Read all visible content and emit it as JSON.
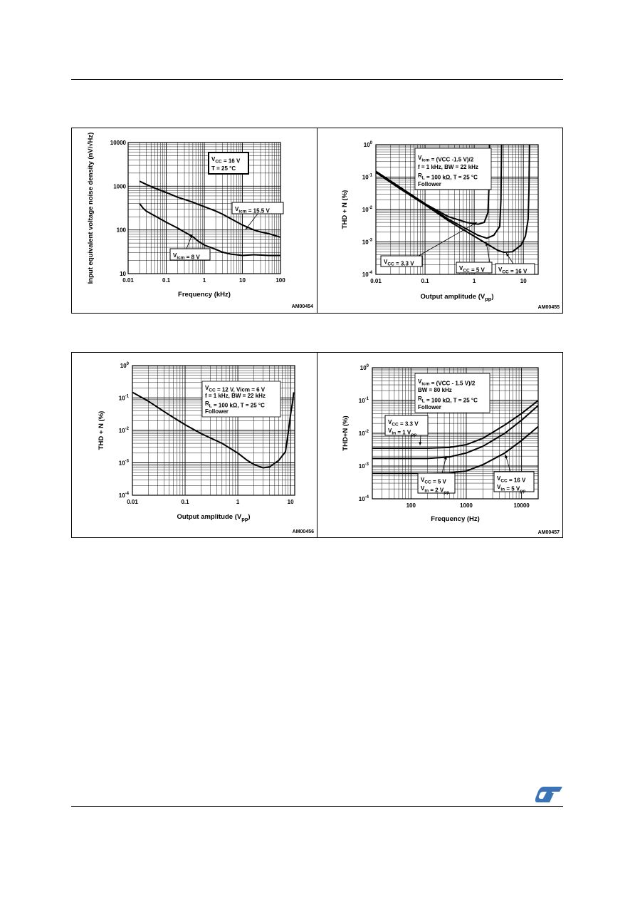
{
  "brand": {
    "logo_text": "ST",
    "color": "#3a73b8"
  },
  "chart_data": [
    {
      "type": "line",
      "code": "AM00454",
      "xlabel": "Frequency (kHz)",
      "ylabel": "Input equivalent voltage noise density (nV/√Hz)",
      "x_scale": "log",
      "y_scale": "log",
      "xlim": [
        0.01,
        100
      ],
      "ylim": [
        10,
        10000
      ],
      "x_ticks": [
        "0.01",
        "0.1",
        "1",
        "10",
        "100"
      ],
      "y_ticks": [
        "10",
        "100",
        "1000",
        "10000"
      ],
      "grid": true,
      "annotations": [
        {
          "lines": [
            [
              "V",
              "CC",
              " = 16 V"
            ],
            [
              "T = 25 °C"
            ]
          ],
          "boxed": true
        },
        {
          "lines": [
            [
              "V",
              "icm",
              " = 15.5 V"
            ]
          ],
          "boxed": true
        },
        {
          "lines": [
            [
              "V",
              "icm",
              " = 8 V"
            ]
          ],
          "boxed": true
        }
      ],
      "series": [
        {
          "label": [
            "V",
            "icm",
            " = 15.5 V"
          ],
          "points": [
            [
              0.02,
              1300
            ],
            [
              0.03,
              1100
            ],
            [
              0.05,
              900
            ],
            [
              0.1,
              720
            ],
            [
              0.2,
              560
            ],
            [
              0.3,
              500
            ],
            [
              0.5,
              430
            ],
            [
              1,
              340
            ],
            [
              2,
              270
            ],
            [
              3,
              230
            ],
            [
              5,
              180
            ],
            [
              10,
              130
            ],
            [
              20,
              100
            ],
            [
              30,
              90
            ],
            [
              50,
              82
            ],
            [
              100,
              68
            ]
          ]
        },
        {
          "label": [
            "V",
            "icm",
            " = 8 V"
          ],
          "points": [
            [
              0.02,
              400
            ],
            [
              0.025,
              310
            ],
            [
              0.03,
              270
            ],
            [
              0.05,
              210
            ],
            [
              0.1,
              150
            ],
            [
              0.2,
              110
            ],
            [
              0.3,
              90
            ],
            [
              0.5,
              70
            ],
            [
              0.7,
              55
            ],
            [
              1,
              45
            ],
            [
              2,
              36
            ],
            [
              3,
              31
            ],
            [
              5,
              28
            ],
            [
              10,
              26
            ],
            [
              20,
              27
            ],
            [
              50,
              26
            ],
            [
              100,
              26
            ]
          ]
        }
      ]
    },
    {
      "type": "line",
      "code": "AM00455",
      "xlabel": "Output amplitude (Vpp)",
      "ylabel": "THD + N (%)",
      "x_scale": "log",
      "y_scale": "log",
      "xlim": [
        0.01,
        20
      ],
      "ylim": [
        0.0001,
        1
      ],
      "x_ticks": [
        "0.01",
        "0.1",
        "1",
        "10"
      ],
      "y_ticks": [
        [
          "10",
          "-4"
        ],
        [
          "10",
          "-3"
        ],
        [
          "10",
          "-2"
        ],
        [
          "10",
          "-1"
        ],
        [
          "10",
          "0"
        ]
      ],
      "grid": true,
      "annotations": [
        {
          "lines": [
            [
              "V",
              "icm",
              " = (V"
            ],
            [
              "CC",
              "",
              " -1.5 V)/2"
            ]
          ],
          "boxed": false
        },
        {
          "lines": [
            [
              "f = 1 kHz, BW = 22 kHz"
            ]
          ],
          "boxed": false
        },
        {
          "lines": [
            [
              "R",
              "L",
              " = 100 kΩ, T = 25 °C"
            ]
          ],
          "boxed": false
        },
        {
          "lines": [
            [
              "Follower"
            ]
          ],
          "boxed": false
        },
        {
          "lines": [
            [
              "V",
              "CC",
              " = 3.3 V"
            ]
          ],
          "boxed": true
        },
        {
          "lines": [
            [
              "V",
              "CC",
              " = 5 V"
            ]
          ],
          "boxed": true
        },
        {
          "lines": [
            [
              "V",
              "CC",
              " = 16 V"
            ]
          ],
          "boxed": true
        }
      ],
      "series": [
        {
          "label": [
            "V",
            "CC",
            " = 3.3 V"
          ],
          "points": [
            [
              0.01,
              0.15
            ],
            [
              0.03,
              0.05
            ],
            [
              0.1,
              0.015
            ],
            [
              0.3,
              0.006
            ],
            [
              0.7,
              0.004
            ],
            [
              1.2,
              0.0035
            ],
            [
              1.6,
              0.004
            ],
            [
              1.9,
              0.008
            ],
            [
              2.0,
              0.05
            ],
            [
              2.05,
              1.0
            ]
          ]
        },
        {
          "label": [
            "V",
            "CC",
            " = 5 V"
          ],
          "points": [
            [
              0.01,
              0.15
            ],
            [
              0.03,
              0.05
            ],
            [
              0.1,
              0.015
            ],
            [
              0.3,
              0.005
            ],
            [
              0.7,
              0.0025
            ],
            [
              1.2,
              0.0016
            ],
            [
              1.8,
              0.0013
            ],
            [
              2.5,
              0.0016
            ],
            [
              3.3,
              0.003
            ],
            [
              3.5,
              0.02
            ],
            [
              3.6,
              1.0
            ]
          ]
        },
        {
          "label": [
            "V",
            "CC",
            " = 16 V"
          ],
          "points": [
            [
              0.01,
              0.14
            ],
            [
              0.03,
              0.045
            ],
            [
              0.1,
              0.014
            ],
            [
              0.3,
              0.0045
            ],
            [
              1,
              0.0015
            ],
            [
              2,
              0.0008
            ],
            [
              3,
              0.00055
            ],
            [
              4,
              0.00048
            ],
            [
              6,
              0.0005
            ],
            [
              9,
              0.0008
            ],
            [
              11,
              0.0015
            ],
            [
              12.5,
              0.005
            ],
            [
              13,
              0.05
            ],
            [
              13.3,
              1.0
            ]
          ]
        }
      ]
    },
    {
      "type": "line",
      "code": "AM00456",
      "xlabel": "Output amplitude (Vpp)",
      "ylabel": "THD + N (%)",
      "x_scale": "log",
      "y_scale": "log",
      "xlim": [
        0.01,
        12
      ],
      "ylim": [
        0.0001,
        1
      ],
      "x_ticks": [
        "0.01",
        "0.1",
        "1",
        "10"
      ],
      "y_ticks": [
        [
          "10",
          "-4"
        ],
        [
          "10",
          "-3"
        ],
        [
          "10",
          "-2"
        ],
        [
          "10",
          "-1"
        ],
        [
          "10",
          "0"
        ]
      ],
      "grid": true,
      "annotations": [
        {
          "lines": [
            [
              "V",
              "CC",
              " = 12 V, V"
            ],
            [
              "icm",
              "",
              " = 6 V"
            ]
          ],
          "boxed": false
        },
        {
          "lines": [
            [
              "f = 1 kHz, BW = 22 kHz"
            ]
          ],
          "boxed": false
        },
        {
          "lines": [
            [
              "R",
              "L",
              " = 100 kΩ, T = 25 °C"
            ]
          ],
          "boxed": false
        },
        {
          "lines": [
            [
              "Follower"
            ]
          ],
          "boxed": false
        }
      ],
      "series": [
        {
          "label": [],
          "points": [
            [
              0.01,
              0.15
            ],
            [
              0.02,
              0.08
            ],
            [
              0.05,
              0.03
            ],
            [
              0.1,
              0.015
            ],
            [
              0.2,
              0.008
            ],
            [
              0.5,
              0.004
            ],
            [
              1,
              0.002
            ],
            [
              1.5,
              0.0012
            ],
            [
              2,
              0.0009
            ],
            [
              3,
              0.0007
            ],
            [
              4,
              0.00075
            ],
            [
              6,
              0.0012
            ],
            [
              8,
              0.0022
            ],
            [
              9,
              0.008
            ],
            [
              10,
              0.03
            ],
            [
              11,
              0.08
            ],
            [
              11.5,
              0.15
            ]
          ]
        }
      ]
    },
    {
      "type": "line",
      "code": "AM00457",
      "xlabel": "Frequency (Hz)",
      "ylabel": "THD+N (%)",
      "x_scale": "log",
      "y_scale": "log",
      "xlim": [
        20,
        20000
      ],
      "ylim": [
        0.0001,
        1
      ],
      "x_ticks": [
        "100",
        "1000",
        "10000"
      ],
      "y_ticks": [
        [
          "10",
          "-4"
        ],
        [
          "10",
          "-3"
        ],
        [
          "10",
          "-2"
        ],
        [
          "10",
          "-1"
        ],
        [
          "10",
          "0"
        ]
      ],
      "grid": true,
      "annotations": [
        {
          "lines": [
            [
              "V",
              "icm",
              " = (V"
            ],
            [
              "CC",
              "",
              " - 1.5 V)/2"
            ]
          ],
          "boxed": false
        },
        {
          "lines": [
            [
              "BW = 80 kHz"
            ]
          ],
          "boxed": false
        },
        {
          "lines": [
            [
              "R",
              "L",
              " = 100 kΩ, T = 25 °C"
            ]
          ],
          "boxed": false
        },
        {
          "lines": [
            [
              "Follower"
            ]
          ],
          "boxed": false
        },
        {
          "lines": [
            [
              "V",
              "CC",
              " = 3.3 V"
            ],
            [
              "V",
              "in",
              " = 1 V",
              "pp"
            ]
          ],
          "boxed": true
        },
        {
          "lines": [
            [
              "V",
              "CC",
              " = 5 V"
            ],
            [
              "V",
              "in",
              " = 2 V",
              "pp"
            ]
          ],
          "boxed": true
        },
        {
          "lines": [
            [
              "V",
              "CC",
              " = 16 V"
            ],
            [
              "V",
              "in",
              " = 5 V",
              "pp"
            ]
          ],
          "boxed": true
        }
      ],
      "series": [
        {
          "label": [
            "V",
            "CC",
            " = 3.3 V"
          ],
          "points": [
            [
              20,
              0.0035
            ],
            [
              50,
              0.0035
            ],
            [
              100,
              0.0035
            ],
            [
              200,
              0.0035
            ],
            [
              500,
              0.0037
            ],
            [
              1000,
              0.0045
            ],
            [
              2000,
              0.007
            ],
            [
              5000,
              0.018
            ],
            [
              10000,
              0.04
            ],
            [
              20000,
              0.1
            ]
          ]
        },
        {
          "label": [
            "V",
            "CC",
            " = 5 V"
          ],
          "points": [
            [
              20,
              0.0017
            ],
            [
              50,
              0.0017
            ],
            [
              100,
              0.0017
            ],
            [
              200,
              0.0017
            ],
            [
              500,
              0.0019
            ],
            [
              1000,
              0.0025
            ],
            [
              2000,
              0.004
            ],
            [
              5000,
              0.01
            ],
            [
              10000,
              0.025
            ],
            [
              20000,
              0.07
            ]
          ]
        },
        {
          "label": [
            "V",
            "CC",
            " = 16 V"
          ],
          "points": [
            [
              20,
              0.0006
            ],
            [
              50,
              0.0006
            ],
            [
              100,
              0.0006
            ],
            [
              200,
              0.0006
            ],
            [
              500,
              0.00062
            ],
            [
              1000,
              0.0007
            ],
            [
              2000,
              0.0011
            ],
            [
              5000,
              0.0025
            ],
            [
              10000,
              0.006
            ],
            [
              20000,
              0.016
            ]
          ]
        }
      ]
    }
  ]
}
